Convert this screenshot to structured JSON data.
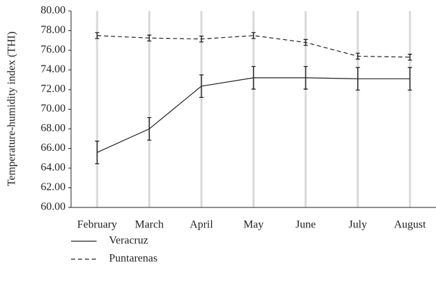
{
  "chart_data": {
    "type": "line",
    "y_label": "Temperature-humidity index (THI)",
    "categories": [
      "February",
      "March",
      "April",
      "May",
      "June",
      "July",
      "August"
    ],
    "series": [
      {
        "name": "Veracruz",
        "color": "#231f20",
        "dash": "solid",
        "values": [
          65.6,
          68.0,
          72.35,
          73.2,
          73.2,
          73.1,
          73.1
        ],
        "errors": [
          1.15,
          1.15,
          1.15,
          1.15,
          1.15,
          1.15,
          1.15
        ]
      },
      {
        "name": "Puntarenas",
        "color": "#231f20",
        "dash": "dashed",
        "values": [
          77.5,
          77.25,
          77.15,
          77.5,
          76.8,
          75.4,
          75.3
        ],
        "errors": [
          0.3,
          0.3,
          0.3,
          0.3,
          0.3,
          0.3,
          0.3
        ]
      }
    ],
    "ylim": [
      60,
      80
    ],
    "yticks": [
      {
        "value": 60,
        "label": "60.00"
      },
      {
        "value": 62,
        "label": "62.00"
      },
      {
        "value": 64,
        "label": "64.00"
      },
      {
        "value": 66,
        "label": "66.00"
      },
      {
        "value": 68,
        "label": "68.00"
      },
      {
        "value": 70,
        "label": "70.00"
      },
      {
        "value": 72,
        "label": "72.00"
      },
      {
        "value": 74,
        "label": "74.00"
      },
      {
        "value": 76,
        "label": "76.00"
      },
      {
        "value": 78,
        "label": "78.00"
      },
      {
        "value": 80,
        "label": "80.00"
      }
    ],
    "grid": "x"
  }
}
